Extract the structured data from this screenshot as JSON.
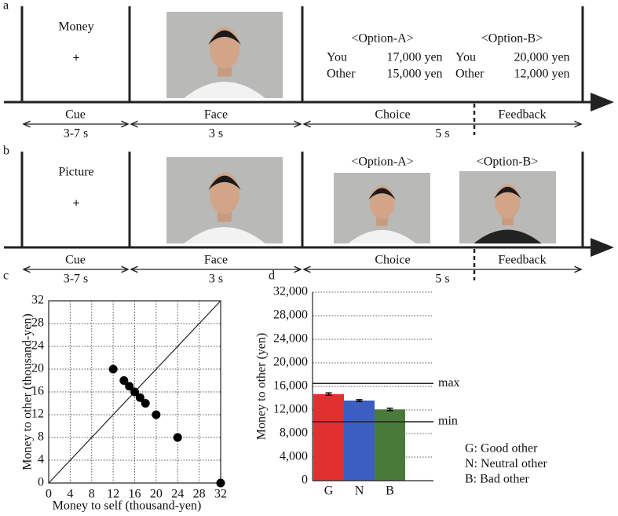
{
  "panel_a": {
    "label": "a",
    "cue_text": "Money",
    "fixation": "+",
    "options": [
      {
        "title": "<Option-A>",
        "rows": [
          [
            "You",
            "17,000 yen"
          ],
          [
            "Other",
            "15,000 yen"
          ]
        ]
      },
      {
        "title": "<Option-B>",
        "rows": [
          [
            "You",
            "20,000 yen"
          ],
          [
            "Other",
            "12,000 yen"
          ]
        ]
      }
    ],
    "phases": [
      "Cue",
      "Face",
      "Choice",
      "Feedback"
    ],
    "durations": [
      "3-7 s",
      "3 s",
      "5 s"
    ]
  },
  "panel_b": {
    "label": "b",
    "cue_text": "Picture",
    "fixation": "+",
    "options": [
      {
        "title": "<Option-A>"
      },
      {
        "title": "<Option-B>"
      }
    ],
    "phases": [
      "Cue",
      "Face",
      "Choice",
      "Feedback"
    ],
    "durations": [
      "3-7 s",
      "3 s",
      "5 s"
    ]
  },
  "chart_data": [
    {
      "type": "scatter",
      "panel_label": "c",
      "x_label": "Money to self (thousand-yen)",
      "y_label": "Money to other (thousand-yen)",
      "x": [
        12,
        14,
        15,
        16,
        17,
        18,
        20,
        24,
        32
      ],
      "values": [
        20,
        18,
        17,
        16,
        15,
        14,
        12,
        8,
        0
      ],
      "color": "#000000",
      "xlim": [
        0,
        32
      ],
      "ylim": [
        0,
        32
      ],
      "xticks": [
        0,
        4,
        8,
        12,
        16,
        20,
        24,
        28,
        32
      ],
      "yticks": [
        0,
        4,
        8,
        12,
        16,
        20,
        24,
        28,
        32
      ],
      "grid": true,
      "diagonal": true
    },
    {
      "type": "bar",
      "panel_label": "d",
      "y_label": "Money to other (yen)",
      "categories": [
        "G",
        "N",
        "B"
      ],
      "values": [
        14700,
        13600,
        12100
      ],
      "errors": [
        200,
        150,
        200
      ],
      "colors": [
        "#e03030",
        "#3a5fc0",
        "#4a7a3a"
      ],
      "legend": [
        "G: Good other",
        "N: Neutral other",
        "B: Bad other"
      ],
      "reference_lines": [
        {
          "value": 16500,
          "label": "max"
        },
        {
          "value": 10000,
          "label": "min"
        }
      ],
      "ylim": [
        0,
        32000
      ],
      "yticks": [
        0,
        {
          "value": 4000,
          "label": "4,000"
        },
        {
          "value": 8000,
          "label": "8,000"
        },
        {
          "value": 12000,
          "label": "12,000"
        },
        {
          "value": 16000,
          "label": "16,000"
        },
        {
          "value": 20000,
          "label": "20,000"
        },
        {
          "value": 24000,
          "label": "24,000"
        },
        {
          "value": 28000,
          "label": "28,000"
        },
        {
          "value": 32000,
          "label": "32,000"
        }
      ],
      "grid": true
    }
  ]
}
